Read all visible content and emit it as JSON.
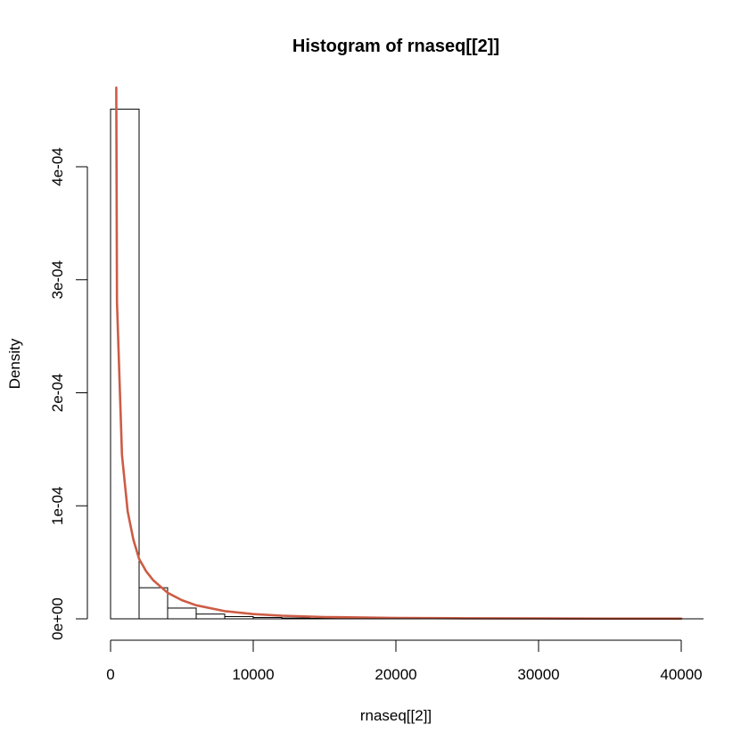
{
  "chart_data": {
    "type": "bar",
    "title": "Histogram of rnaseq[[2]]",
    "xlabel": "rnaseq[[2]]",
    "ylabel": "Density",
    "xlim": [
      0,
      40000
    ],
    "ylim": [
      0,
      0.0004
    ],
    "x_ticks": [
      0,
      10000,
      20000,
      30000,
      40000
    ],
    "x_tick_labels": [
      "0",
      "10000",
      "20000",
      "30000",
      "40000"
    ],
    "y_ticks": [
      0,
      0.0001,
      0.0002,
      0.0003,
      0.0004
    ],
    "y_tick_labels": [
      "0e+00",
      "1e-04",
      "2e-04",
      "3e-04",
      "4e-04"
    ],
    "bin_width": 2000,
    "bins": [
      {
        "start": 0,
        "end": 2000,
        "density": 0.000451
      },
      {
        "start": 2000,
        "end": 4000,
        "density": 2.75e-05
      },
      {
        "start": 4000,
        "end": 6000,
        "density": 9.5e-06
      },
      {
        "start": 6000,
        "end": 8000,
        "density": 4.2e-06
      },
      {
        "start": 8000,
        "end": 10000,
        "density": 2e-06
      },
      {
        "start": 10000,
        "end": 12000,
        "density": 1.2e-06
      },
      {
        "start": 12000,
        "end": 14000,
        "density": 7e-07
      },
      {
        "start": 14000,
        "end": 16000,
        "density": 4e-07
      },
      {
        "start": 16000,
        "end": 18000,
        "density": 3e-07
      },
      {
        "start": 18000,
        "end": 20000,
        "density": 2e-07
      },
      {
        "start": 20000,
        "end": 22000,
        "density": 1e-07
      },
      {
        "start": 22000,
        "end": 24000,
        "density": 1e-07
      },
      {
        "start": 24000,
        "end": 26000,
        "density": 1e-07
      },
      {
        "start": 26000,
        "end": 28000,
        "density": 1e-07
      },
      {
        "start": 28000,
        "end": 30000,
        "density": 5e-08
      },
      {
        "start": 30000,
        "end": 32000,
        "density": 5e-08
      },
      {
        "start": 32000,
        "end": 34000,
        "density": 5e-08
      },
      {
        "start": 34000,
        "end": 36000,
        "density": 3e-08
      },
      {
        "start": 36000,
        "end": 38000,
        "density": 3e-08
      },
      {
        "start": 38000,
        "end": 40000,
        "density": 3e-08
      }
    ],
    "overlay_curve": {
      "color": "#cd5c45",
      "points": [
        {
          "x": 400,
          "y": 0.00047
        },
        {
          "x": 450,
          "y": 0.00028
        },
        {
          "x": 800,
          "y": 0.000145
        },
        {
          "x": 1200,
          "y": 9.5e-05
        },
        {
          "x": 1600,
          "y": 7e-05
        },
        {
          "x": 2000,
          "y": 5.3e-05
        },
        {
          "x": 2500,
          "y": 4.2e-05
        },
        {
          "x": 3000,
          "y": 3.4e-05
        },
        {
          "x": 4000,
          "y": 2.3e-05
        },
        {
          "x": 5000,
          "y": 1.65e-05
        },
        {
          "x": 6000,
          "y": 1.2e-05
        },
        {
          "x": 8000,
          "y": 6.8e-06
        },
        {
          "x": 10000,
          "y": 4.2e-06
        },
        {
          "x": 12000,
          "y": 2.8e-06
        },
        {
          "x": 15000,
          "y": 1.6e-06
        },
        {
          "x": 20000,
          "y": 8e-07
        },
        {
          "x": 25000,
          "y": 4.5e-07
        },
        {
          "x": 30000,
          "y": 2.8e-07
        },
        {
          "x": 35000,
          "y": 1.8e-07
        },
        {
          "x": 40000,
          "y": 1.2e-07
        }
      ]
    },
    "grid": false,
    "legend": "none"
  }
}
